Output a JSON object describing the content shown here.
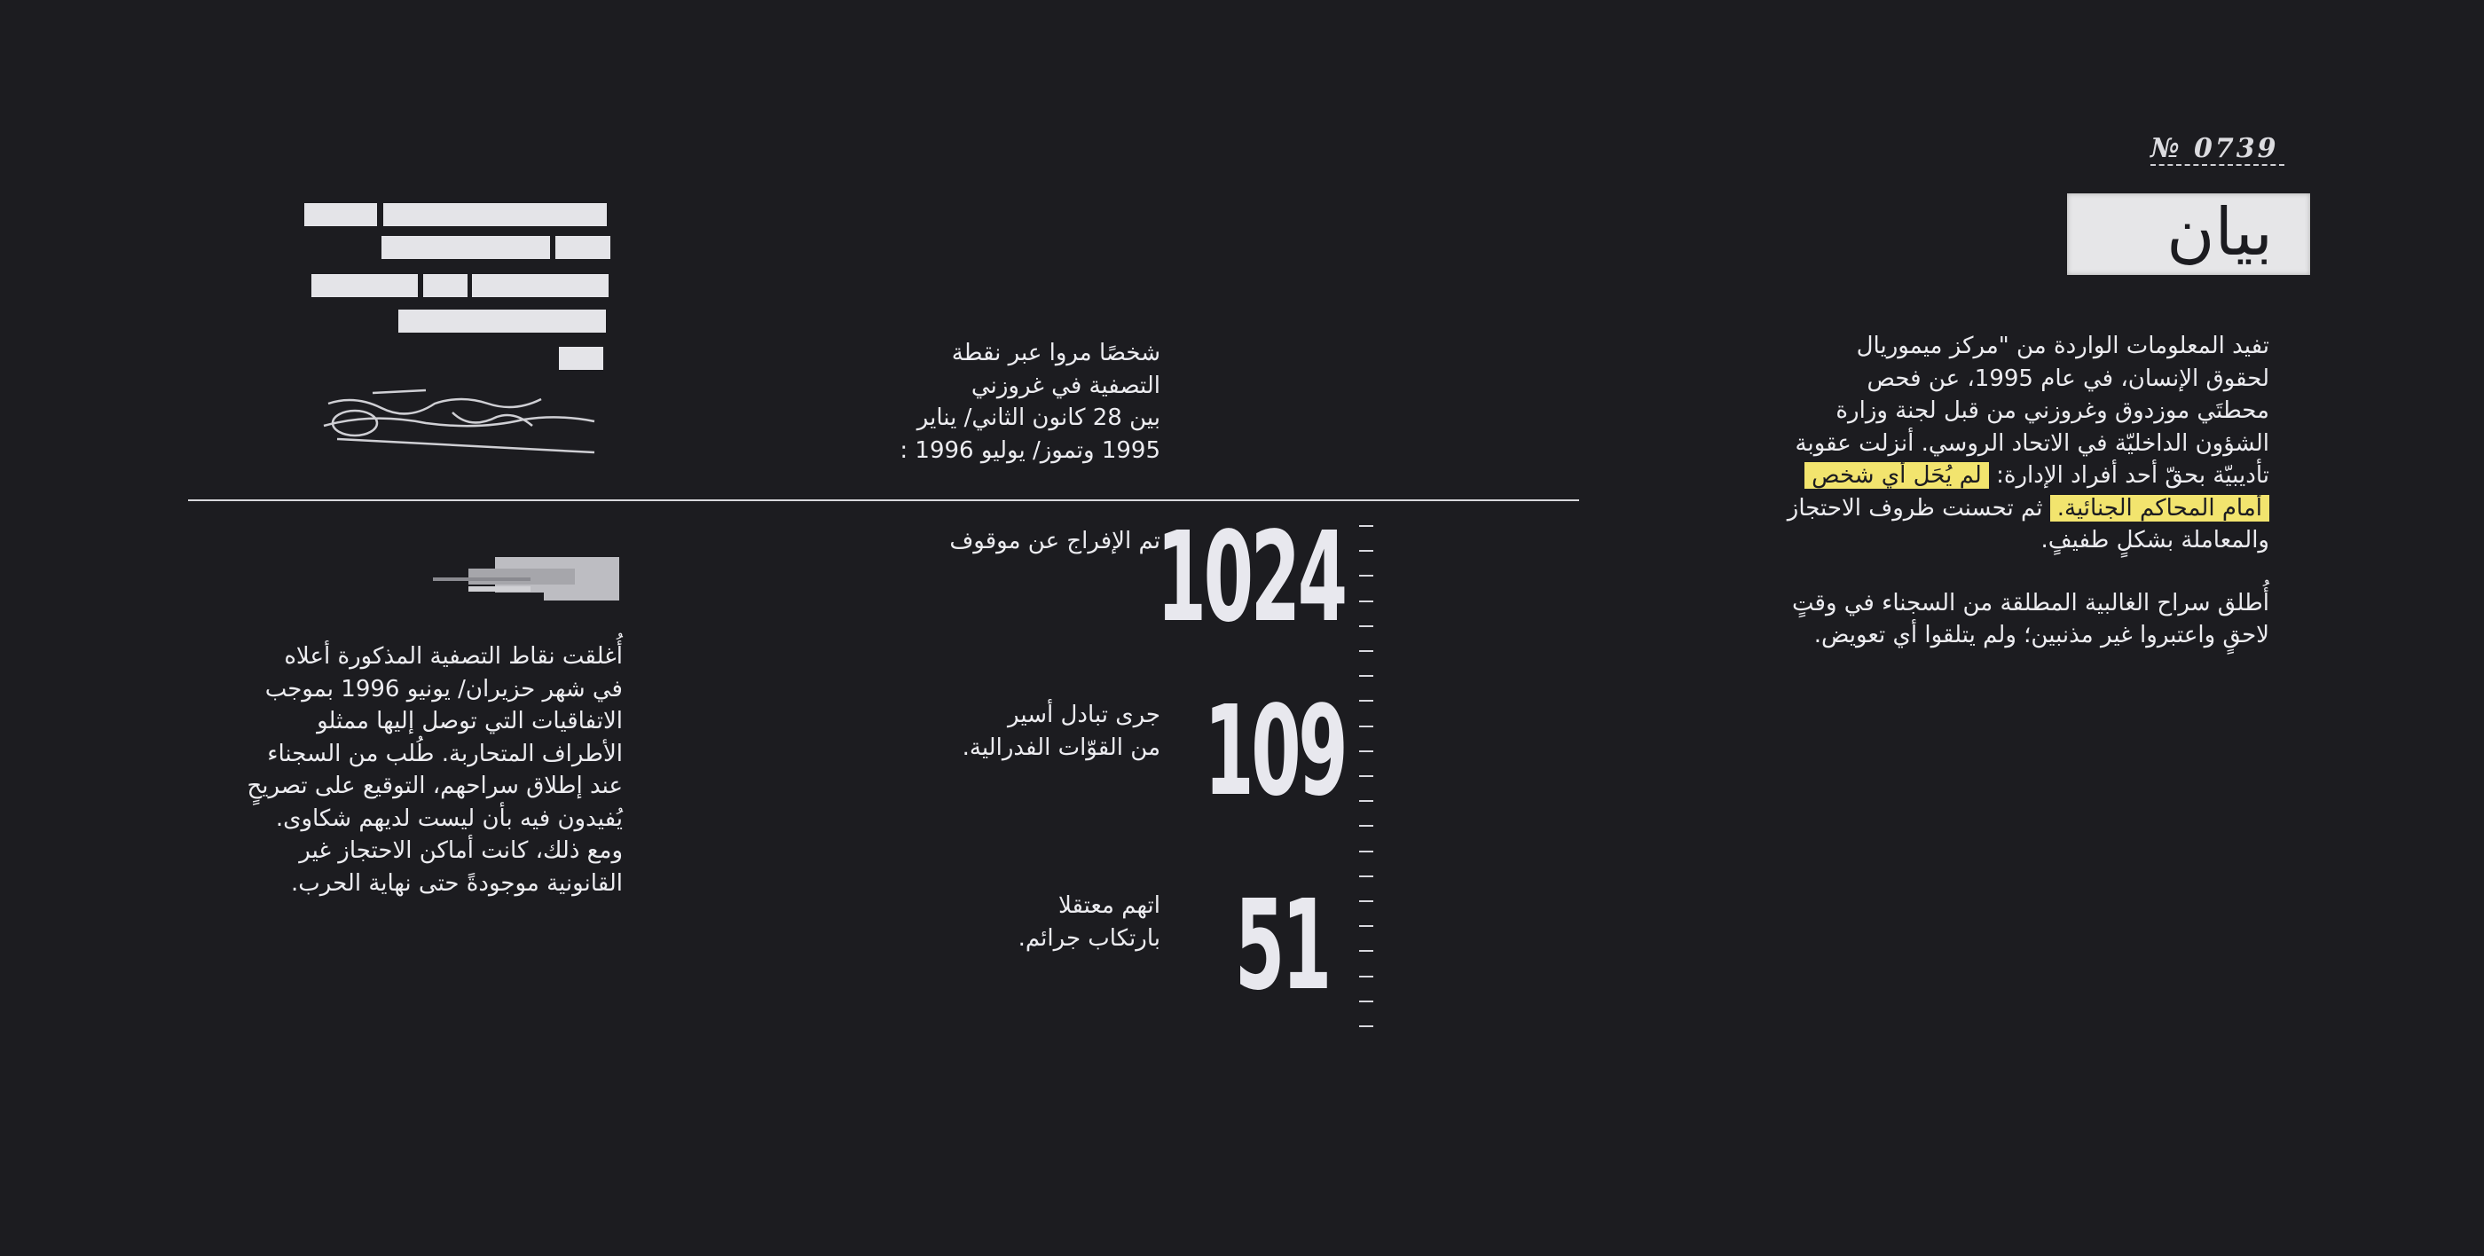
{
  "header": {
    "doc_number": "№ 0739",
    "title": "بيان"
  },
  "right_column": {
    "para1_lines": [
      "تفيد المعلومات الواردة من \"مركز ميموريال",
      "لحقوق الإنسان، في عام 1995، عن فحص",
      "محطتَي موزدوق وغروزني من قبل لجنة وزارة",
      "الشؤون الداخليّة في الاتحاد الروسي. أنزلت عقوبة"
    ],
    "line5_plain": "تأديبيّة بحقّ أحد أفراد الإدارة: ",
    "line5_highlight": "لم يُحَل أي شخص",
    "line6_highlight": "أمام المحاكم الجنائية.",
    "line6_plain": " ثم تحسنت ظروف الاحتجاز",
    "line7": "والمعاملة بشكلٍ طفيفٍ.",
    "para2_lines": [
      "أُطلق سراح الغالبية المطلقة من السجناء في وقتٍ",
      "لاحقٍ واعتبروا غير مذنبين؛ ولم يتلقوا أي تعويض."
    ],
    "highlight_color": "#f2e46e"
  },
  "middle": {
    "intro_lines": [
      "شخصًا مروا عبر نقطة",
      "التصفية في غروزني",
      "بين 28 كانون الثاني/ يناير",
      "1995 وتموز/ يوليو 1996 :"
    ],
    "stats": [
      {
        "value": "1024",
        "label_lines": [
          "تم الإفراج عن موقوف"
        ]
      },
      {
        "value": "109",
        "label_lines": [
          "جرى تبادل أسير",
          "من القوّات الفدرالية."
        ]
      },
      {
        "value": "51",
        "label_lines": [
          "اتهم معتقلا",
          "بارتكاب جرائم."
        ]
      }
    ]
  },
  "left_column": {
    "para_lines": [
      "أُغلقت نقاط التصفية المذكورة أعلاه",
      "في شهر حزيران/ يونيو 1996 بموجب",
      "الاتفاقيات التي توصل إليها ممثلو",
      "الأطراف المتحاربة. طُلب من السجناء",
      "عند إطلاق سراحهم، التوقيع على تصريحٍ",
      "يُفيدون فيه بأن ليست لديهم شكاوى.",
      "ومع ذلك، كانت أماكن الاحتجاز غير",
      "القانونية موجودةً حتى نهاية الحرب."
    ]
  }
}
